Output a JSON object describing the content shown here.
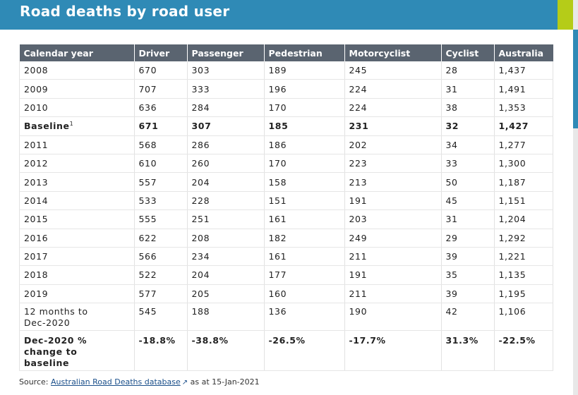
{
  "header": {
    "title": "Road deaths by road user"
  },
  "colors": {
    "header_bg": "#2f8ab6",
    "accent": "#b5cc18",
    "table_header_bg": "#5a6470"
  },
  "table": {
    "columns": [
      "Calendar year",
      "Driver",
      "Passenger",
      "Pedestrian",
      "Motorcyclist",
      "Cyclist",
      "Australia"
    ],
    "rows": [
      [
        "2008",
        "670",
        "303",
        "189",
        "245",
        "28",
        "1,437"
      ],
      [
        "2009",
        "707",
        "333",
        "196",
        "224",
        "31",
        "1,491"
      ],
      [
        "2010",
        "636",
        "284",
        "170",
        "224",
        "38",
        "1,353"
      ],
      [
        "Baseline",
        "671",
        "307",
        "185",
        "231",
        "32",
        "1,427"
      ],
      [
        "2011",
        "568",
        "286",
        "186",
        "202",
        "34",
        "1,277"
      ],
      [
        "2012",
        "610",
        "260",
        "170",
        "223",
        "33",
        "1,300"
      ],
      [
        "2013",
        "557",
        "204",
        "158",
        "213",
        "50",
        "1,187"
      ],
      [
        "2014",
        "533",
        "228",
        "151",
        "191",
        "45",
        "1,151"
      ],
      [
        "2015",
        "555",
        "251",
        "161",
        "203",
        "31",
        "1,204"
      ],
      [
        "2016",
        "622",
        "208",
        "182",
        "249",
        "29",
        "1,292"
      ],
      [
        "2017",
        "566",
        "234",
        "161",
        "211",
        "39",
        "1,221"
      ],
      [
        "2018",
        "522",
        "204",
        "177",
        "191",
        "35",
        "1,135"
      ],
      [
        "2019",
        "577",
        "205",
        "160",
        "211",
        "39",
        "1,195"
      ],
      [
        "12 months to\nDec-2020",
        "545",
        "188",
        "136",
        "190",
        "42",
        "1,106"
      ],
      [
        "Dec-2020 %\nchange to\nbaseline",
        "-18.8%",
        "-38.8%",
        "-26.5%",
        "-17.7%",
        "31.3%",
        "-22.5%"
      ]
    ],
    "baseline_footnote": "1"
  },
  "source": {
    "prefix": "Source:",
    "link_text": "Australian Road Deaths database",
    "suffix": "as at 15-Jan-2021",
    "link_icon": "external-link-icon"
  }
}
